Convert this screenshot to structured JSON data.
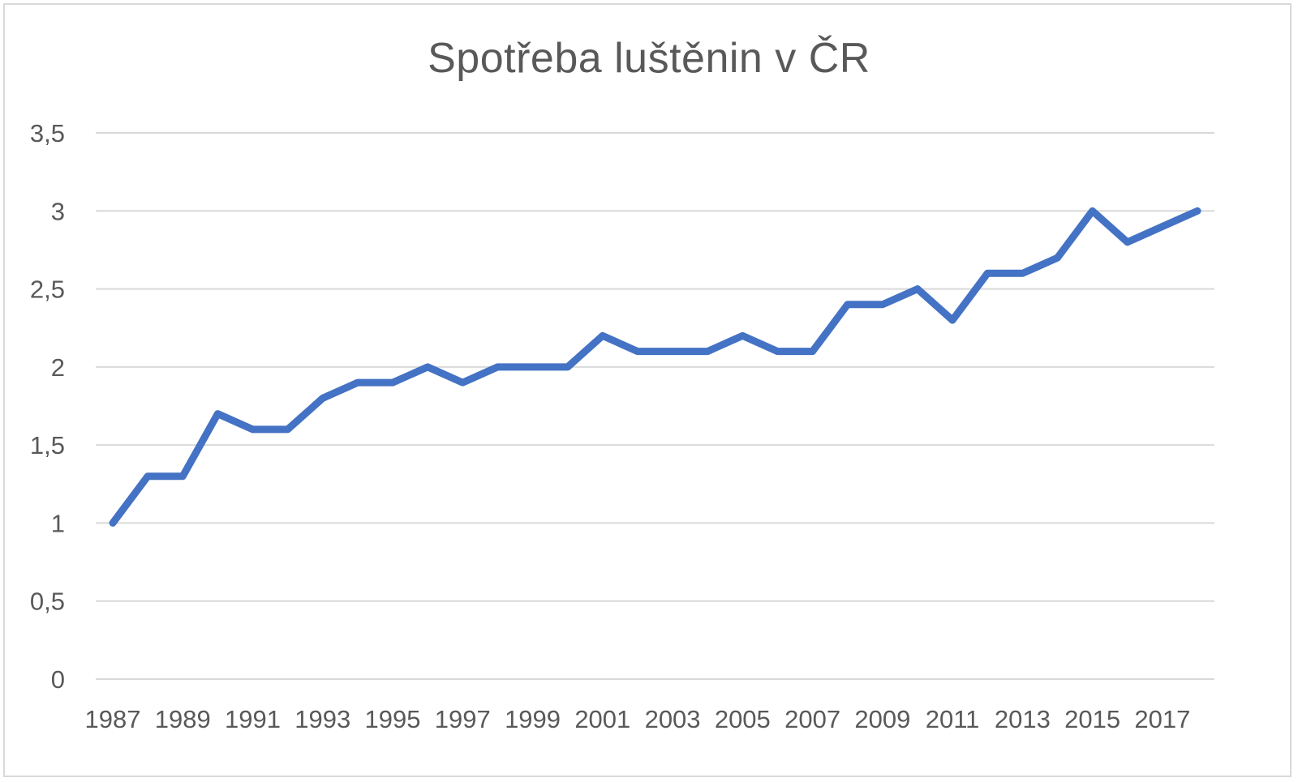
{
  "chart_data": {
    "type": "line",
    "title": "Spotřeba luštěnin v ČR",
    "xlabel": "",
    "ylabel": "",
    "ylim": [
      0,
      3.5
    ],
    "yticks": [
      0,
      0.5,
      1,
      1.5,
      2,
      2.5,
      3,
      3.5
    ],
    "ytick_labels": [
      "0",
      "0,5",
      "1",
      "1,5",
      "2",
      "2,5",
      "3",
      "3,5"
    ],
    "x": [
      1987,
      1988,
      1989,
      1990,
      1991,
      1992,
      1993,
      1994,
      1995,
      1996,
      1997,
      1998,
      1999,
      2000,
      2001,
      2002,
      2003,
      2004,
      2005,
      2006,
      2007,
      2008,
      2009,
      2010,
      2011,
      2012,
      2013,
      2014,
      2015,
      2016,
      2017,
      2018
    ],
    "xtick_labels": [
      "1987",
      "1989",
      "1991",
      "1993",
      "1995",
      "1997",
      "1999",
      "2001",
      "2003",
      "2005",
      "2007",
      "2009",
      "2011",
      "2013",
      "2015",
      "2017"
    ],
    "series": [
      {
        "values": [
          1.0,
          1.3,
          1.3,
          1.7,
          1.6,
          1.6,
          1.8,
          1.9,
          1.9,
          2.0,
          1.9,
          2.0,
          2.0,
          2.0,
          2.2,
          2.1,
          2.1,
          2.1,
          2.2,
          2.1,
          2.1,
          2.4,
          2.4,
          2.5,
          2.3,
          2.6,
          2.6,
          2.7,
          3.0,
          2.8,
          2.9,
          3.0
        ],
        "color": "#4472c4"
      }
    ],
    "grid": true,
    "legend": "none",
    "gridline_color": "#d9d9d9"
  }
}
